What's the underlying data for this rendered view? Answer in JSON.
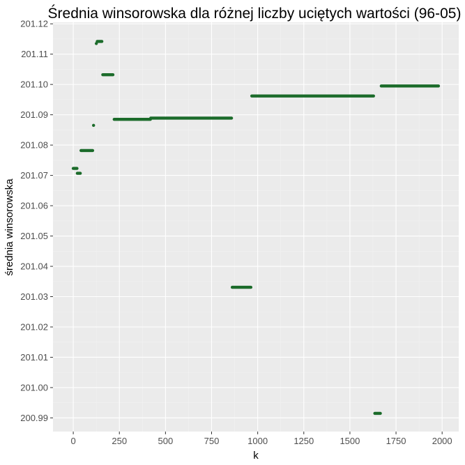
{
  "chart_data": {
    "type": "scatter",
    "title": "Średnia winsorowska dla różnej liczby uciętych wartości (96-05)",
    "xlabel": "k",
    "ylabel": "średnia winsorowska",
    "xlim": [
      -110,
      2090
    ],
    "ylim": [
      200.9855,
      201.1205
    ],
    "x_ticks": [
      0,
      250,
      500,
      750,
      1000,
      1250,
      1500,
      1750,
      2000
    ],
    "y_ticks": [
      200.99,
      201.0,
      201.01,
      201.02,
      201.03,
      201.04,
      201.05,
      201.06,
      201.07,
      201.08,
      201.09,
      201.1,
      201.11,
      201.12
    ],
    "x_tick_labels": [
      "0",
      "250",
      "500",
      "750",
      "1000",
      "1250",
      "1500",
      "1750",
      "2000"
    ],
    "y_tick_labels": [
      "200.99",
      "201.00",
      "201.01",
      "201.02",
      "201.03",
      "201.04",
      "201.05",
      "201.06",
      "201.07",
      "201.08",
      "201.09",
      "201.10",
      "201.11",
      "201.12"
    ],
    "grid": true,
    "legend": "none",
    "point_color": "#1b6b2a",
    "panel_background": "#ebebeb",
    "series": [
      {
        "segments": [
          {
            "x_start": 0,
            "x_end": 20,
            "y": 201.0723
          },
          {
            "x_start": 22,
            "x_end": 38,
            "y": 201.0707
          },
          {
            "x_start": 42,
            "x_end": 105,
            "y": 201.0782
          },
          {
            "x_start": 110,
            "x_end": 112,
            "y": 201.0865
          },
          {
            "x_start": 125,
            "x_end": 128,
            "y": 201.1135
          },
          {
            "x_start": 130,
            "x_end": 155,
            "y": 201.1142
          },
          {
            "x_start": 160,
            "x_end": 215,
            "y": 201.1032
          },
          {
            "x_start": 222,
            "x_end": 418,
            "y": 201.0885
          },
          {
            "x_start": 420,
            "x_end": 858,
            "y": 201.0889
          },
          {
            "x_start": 862,
            "x_end": 963,
            "y": 201.0331
          },
          {
            "x_start": 968,
            "x_end": 1628,
            "y": 201.0962
          },
          {
            "x_start": 1635,
            "x_end": 1665,
            "y": 200.9915
          },
          {
            "x_start": 1670,
            "x_end": 1980,
            "y": 201.0995
          }
        ]
      }
    ]
  }
}
